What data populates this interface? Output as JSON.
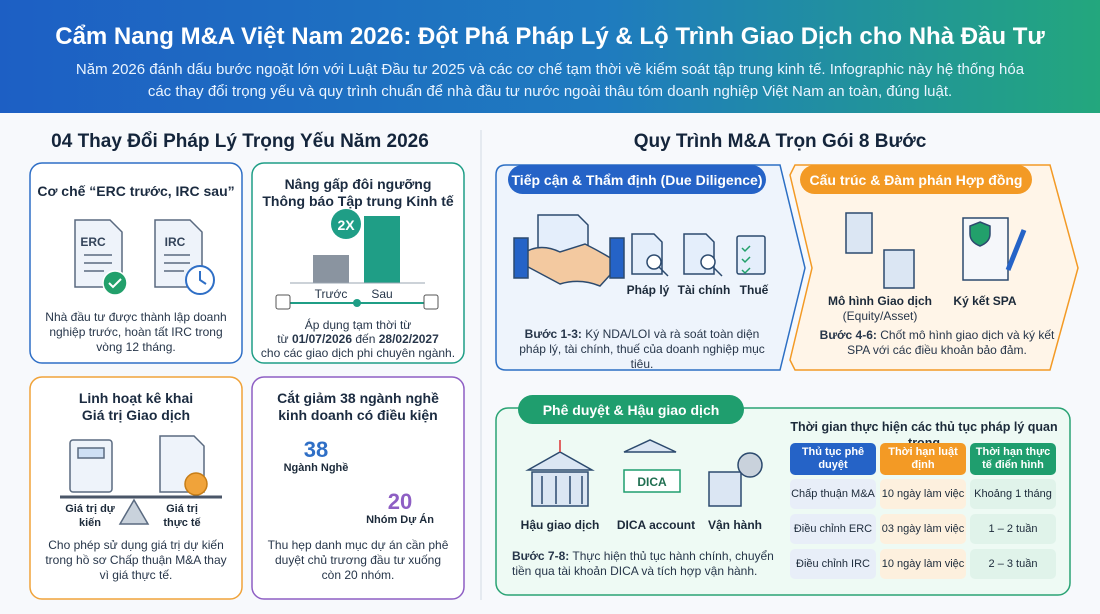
{
  "header": {
    "title": "Cẩm Nang M&A Việt Nam 2026: Đột Phá Pháp Lý & Lộ Trình Giao Dịch cho Nhà Đầu Tư",
    "subtitle_line1": "Năm 2026 đánh dấu bước ngoặt lớn với Luật Đầu tư 2025 và các cơ chế tạm thời về kiểm soát tập trung kinh tế. Infographic này hệ thống hóa",
    "subtitle_line2": "các thay đổi trọng yếu và quy trình chuẩn để nhà đầu tư nước ngoài thâu tóm doanh nghiệp Việt Nam an toàn, đúng luật."
  },
  "left": {
    "title": "04 Thay Đổi Pháp Lý Trọng Yếu Năm 2026",
    "cards": [
      {
        "title": "Cơ chế “ERC trước, IRC sau”",
        "doc_labels": [
          "ERC",
          "IRC"
        ],
        "text": "Nhà đầu tư được thành lập doanh nghiệp trước, hoàn tất IRC trong vòng 12 tháng."
      },
      {
        "title_line1": "Nâng gấp đôi ngưỡng",
        "title_line2": "Thông báo Tập trung Kinh tế",
        "badge": "2X",
        "bars": [
          "Trước",
          "Sau"
        ],
        "note_line1": "Áp dụng tạm thời từ",
        "from": "từ",
        "date_from": "01/07/2026",
        "to": "đến",
        "date_to": "28/02/2027",
        "note_line3": "cho các giao dịch phi chuyên ngành."
      },
      {
        "title_line1": "Linh hoạt kê khai",
        "title_line2": "Giá trị Giao dịch",
        "scale_labels": [
          "Giá trị dự kiến",
          "Giá trị thực tế"
        ],
        "text": "Cho phép sử dụng giá trị dự kiến trong hồ sơ Chấp thuận M&A thay vì giá thực tế."
      },
      {
        "title_line1": "Cắt giảm 38 ngành nghề",
        "title_line2": "kinh doanh có điều kiện",
        "stats": [
          {
            "value": 38,
            "label": "Ngành Nghề"
          },
          {
            "value": 20,
            "label": "Nhóm Dự Án"
          }
        ],
        "text": "Thu hẹp danh mục dự án cần phê duyệt chủ trương đầu tư xuống còn 20 nhóm."
      }
    ]
  },
  "right": {
    "title": "Quy Trình M&A Trọn Gói 8 Bước",
    "stages": [
      {
        "header": "Tiếp cận & Thẩm định (Due Diligence)",
        "items": [
          "Pháp lý",
          "Tài chính",
          "Thuế"
        ],
        "step": "Bước 1-3:",
        "text": "Ký NDA/LOI và rà soát toàn diện pháp lý, tài chính, thuế của doanh nghiệp mục tiêu."
      },
      {
        "header": "Cấu trúc & Đàm phán Hợp đồng",
        "items": [
          "Mô hình Giao dịch",
          "(Equity/Asset)",
          "Ký kết SPA"
        ],
        "step": "Bước 4-6:",
        "text": "Chốt mô hình giao dịch và ký kết SPA với các điều khoản bảo đảm."
      },
      {
        "header": "Phê duyệt & Hậu giao dịch",
        "icon_label": "DICA",
        "items": [
          "Hậu giao dịch",
          "DICA account",
          "Vận hành"
        ],
        "step": "Bước 7-8:",
        "text": "Thực hiện thủ tục hành chính, chuyển tiền qua tài khoản DICA và tích hợp vận hành."
      }
    ],
    "table": {
      "title": "Thời gian thực hiện các thủ tục pháp lý quan trọng",
      "columns": [
        "Thủ tục phê duyệt",
        "Thời hạn luật định",
        "Thời hạn thực tế điển hình"
      ],
      "rows": [
        [
          "Chấp thuận M&A",
          "10 ngày làm việc",
          "Khoảng 1 tháng"
        ],
        [
          "Điều chỉnh ERC",
          "03 ngày làm việc",
          "1 – 2 tuần"
        ],
        [
          "Điều chỉnh IRC",
          "10 ngày làm việc",
          "2 – 3 tuần"
        ]
      ]
    }
  }
}
